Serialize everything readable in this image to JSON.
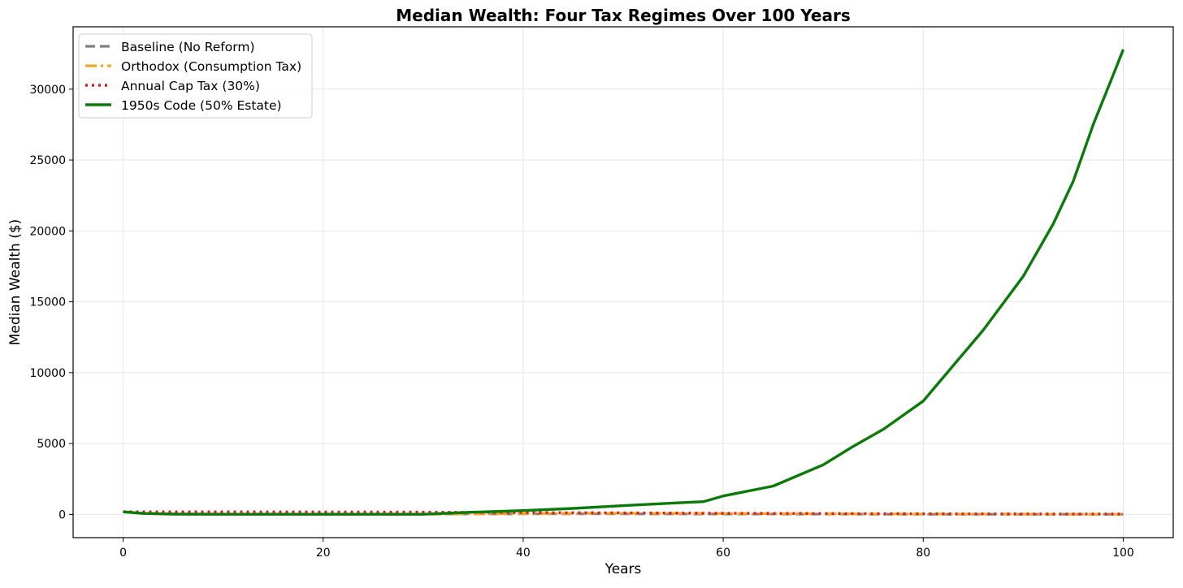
{
  "chart_data": {
    "type": "line",
    "title": "Median Wealth: Four Tax Regimes Over 100 Years",
    "xlabel": "Years",
    "ylabel": "Median Wealth ($)",
    "xlim": [
      -5,
      105
    ],
    "ylim": [
      -1640,
      34400
    ],
    "xticks": [
      0,
      20,
      40,
      60,
      80,
      100
    ],
    "yticks": [
      0,
      5000,
      10000,
      15000,
      20000,
      25000,
      30000
    ],
    "grid": true,
    "legend_position": "top-left",
    "series": [
      {
        "name": "Baseline (No Reform)",
        "color": "#7f7f7f",
        "style": "dashed",
        "x": [
          0,
          2,
          5,
          10,
          20,
          30,
          34,
          40,
          50,
          60,
          70,
          80,
          90,
          100
        ],
        "y": [
          180,
          80,
          30,
          20,
          20,
          20,
          30,
          40,
          40,
          30,
          20,
          10,
          10,
          10
        ]
      },
      {
        "name": "Orthodox (Consumption Tax)",
        "color": "#f5a623",
        "style": "dashdot",
        "x": [
          0,
          2,
          5,
          10,
          20,
          30,
          34,
          40,
          50,
          60,
          70,
          80,
          90,
          100
        ],
        "y": [
          170,
          70,
          20,
          10,
          10,
          10,
          20,
          60,
          80,
          60,
          40,
          30,
          20,
          10
        ]
      },
      {
        "name": "Annual Cap Tax (30%)",
        "color": "#d62020",
        "style": "dotted",
        "x": [
          0,
          2,
          5,
          10,
          20,
          30,
          34,
          40,
          50,
          60,
          70,
          80,
          90,
          100
        ],
        "y": [
          190,
          180,
          180,
          180,
          170,
          160,
          150,
          130,
          110,
          80,
          60,
          40,
          30,
          20
        ]
      },
      {
        "name": "1950s Code (50% Estate)",
        "color": "#0a7a0a",
        "style": "solid",
        "x": [
          0,
          2,
          5,
          10,
          20,
          30,
          34,
          40,
          45,
          50,
          55,
          58,
          60,
          65,
          70,
          73,
          76,
          80,
          83,
          86,
          90,
          93,
          95,
          97,
          99,
          100
        ],
        "y": [
          180,
          70,
          20,
          10,
          10,
          10,
          130,
          270,
          420,
          620,
          800,
          900,
          1300,
          2000,
          3500,
          4800,
          6000,
          8000,
          10500,
          13000,
          16800,
          20500,
          23500,
          27500,
          31000,
          32800
        ]
      }
    ]
  }
}
